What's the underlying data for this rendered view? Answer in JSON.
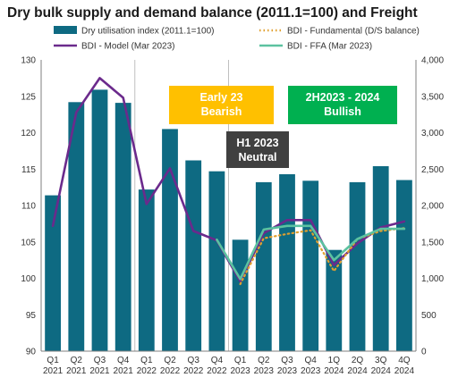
{
  "chart_data": {
    "type": "bar",
    "title": "Dry bulk supply and demand balance (2011.1=100) and Freight",
    "categories": [
      "Q1 2021",
      "Q2 2021",
      "Q3 2021",
      "Q4 2021",
      "Q1 2022",
      "Q2 2022",
      "Q3 2022",
      "Q4 2022",
      "Q1 2023",
      "Q2 2023",
      "Q3 2023",
      "Q4 2023",
      "1Q 2024",
      "2Q 2024",
      "3Q 2024",
      "4Q 2024"
    ],
    "category_lines": [
      [
        "Q1",
        "2021"
      ],
      [
        "Q2",
        "2021"
      ],
      [
        "Q3",
        "2021"
      ],
      [
        "Q4",
        "2021"
      ],
      [
        "Q1",
        "2022"
      ],
      [
        "Q2",
        "2022"
      ],
      [
        "Q3",
        "2022"
      ],
      [
        "Q4",
        "2022"
      ],
      [
        "Q1",
        "2023"
      ],
      [
        "Q2",
        "2023"
      ],
      [
        "Q3",
        "2023"
      ],
      [
        "Q4",
        "2023"
      ],
      [
        "1Q",
        "2024"
      ],
      [
        "2Q",
        "2024"
      ],
      [
        "3Q",
        "2024"
      ],
      [
        "4Q",
        "2024"
      ]
    ],
    "y_left": {
      "min": 90,
      "max": 130,
      "ticks": [
        90,
        95,
        100,
        105,
        110,
        115,
        120,
        125,
        130
      ]
    },
    "y_right": {
      "min": 0,
      "max": 4000,
      "ticks": [
        "0",
        "500",
        "1,000",
        "1,500",
        "2,000",
        "2,500",
        "3,000",
        "3,500",
        "4,000"
      ],
      "tick_values": [
        0,
        500,
        1000,
        1500,
        2000,
        2500,
        3000,
        3500,
        4000
      ]
    },
    "series": [
      {
        "name": "Dry utilisation index (2011.1=100)",
        "type": "bar",
        "axis": "left",
        "color": "#0e6a82",
        "values": [
          111.4,
          124.2,
          125.9,
          124.1,
          112.2,
          120.5,
          116.2,
          114.7,
          105.3,
          113.2,
          114.3,
          113.4,
          103.9,
          113.2,
          115.4,
          113.5
        ]
      },
      {
        "name": "BDI - Model (Mar 2023)",
        "type": "line",
        "axis": "right",
        "color": "#6b2a8c",
        "values": [
          1720,
          3280,
          3750,
          3480,
          2020,
          2510,
          1650,
          1520,
          960,
          1620,
          1800,
          1800,
          1180,
          1480,
          1700,
          1780
        ]
      },
      {
        "name": "BDI - Fundamental (D/S balance)",
        "type": "line",
        "axis": "right",
        "style": "dotted",
        "color": "#e0a030",
        "values": [
          null,
          null,
          null,
          null,
          null,
          null,
          null,
          null,
          920,
          1550,
          1610,
          1660,
          1100,
          1540,
          1650,
          1690
        ]
      },
      {
        "name": "BDI - FFA (Mar 2023)",
        "type": "line",
        "axis": "right",
        "color": "#5cc2a0",
        "values": [
          null,
          null,
          null,
          null,
          null,
          null,
          null,
          1530,
          990,
          1670,
          1720,
          1720,
          1250,
          1540,
          1680,
          1680
        ]
      }
    ],
    "annotations": [
      {
        "lines": [
          "Early 23",
          "Bearish"
        ],
        "fill": "#ffc000",
        "text_color": "#ffffff"
      },
      {
        "lines": [
          "2H2023 - 2024",
          "Bullish"
        ],
        "fill": "#00b050",
        "text_color": "#ffffff"
      },
      {
        "lines": [
          "H1 2023",
          "Neutral"
        ],
        "fill": "#404040",
        "text_color": "#ffffff"
      }
    ],
    "grid": false,
    "legend_position": "top"
  }
}
